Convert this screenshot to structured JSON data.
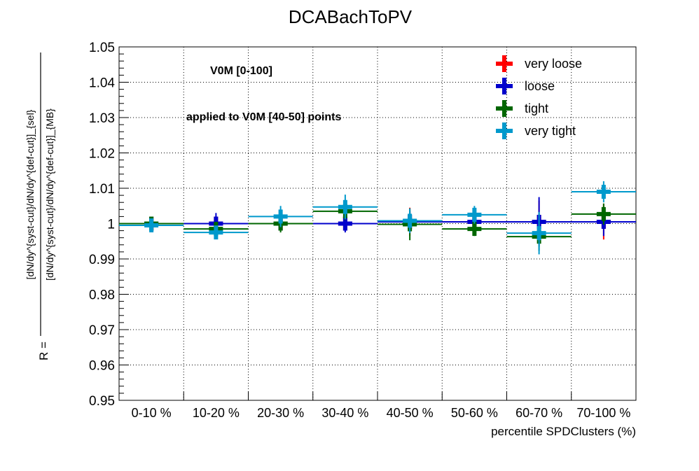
{
  "chart_data": {
    "type": "scatter",
    "title": "DCABachToPV",
    "xlabel": "percentile SPDClusters (%)",
    "ylabel": {
      "prefix": "R = ",
      "numerator": "[dN/dy^{syst-cut}/dN/dy^{def-cut}]_{sel}",
      "denominator": "[dN/dy^{syst-cut}/dN/dy^{def-cut}]_{MB}"
    },
    "ylim": [
      0.95,
      1.05
    ],
    "yticks": [
      "0.95",
      "0.96",
      "0.97",
      "0.98",
      "0.99",
      "1",
      "1.01",
      "1.02",
      "1.03",
      "1.04",
      "1.05"
    ],
    "categories": [
      "0-10 %",
      "10-20 %",
      "20-30 %",
      "30-40 %",
      "40-50 %",
      "50-60 %",
      "60-70 %",
      "70-100 %"
    ],
    "grid": true,
    "legend_position": "top-right",
    "annotations": [
      "V0M [0-100]",
      "applied to V0M [40-50] points"
    ],
    "series": [
      {
        "name": "very loose",
        "color": "#ff0000",
        "values": [
          1.0,
          1.0,
          1.0,
          1.0,
          1.0005,
          1.0005,
          1.0005,
          1.0005
        ],
        "errors": [
          0.001,
          0.002,
          0.001,
          0.002,
          0.004,
          0.001,
          0.006,
          0.005
        ]
      },
      {
        "name": "loose",
        "color": "#0000cc",
        "values": [
          1.0,
          1.0,
          1.0,
          1.0,
          1.0005,
          1.0005,
          1.0005,
          1.0005
        ],
        "errors": [
          0.001,
          0.003,
          0.001,
          0.0025,
          0.003,
          0.001,
          0.007,
          0.004
        ]
      },
      {
        "name": "tight",
        "color": "#006600",
        "values": [
          1.0,
          0.9985,
          1.0,
          1.0035,
          0.9998,
          0.9985,
          0.9963,
          1.0027
        ],
        "errors": [
          0.0015,
          0.002,
          0.0025,
          0.0025,
          0.0045,
          0.002,
          0.004,
          0.003
        ]
      },
      {
        "name": "very tight",
        "color": "#0099cc",
        "values": [
          0.9995,
          0.9975,
          1.002,
          1.0047,
          1.0008,
          1.0025,
          0.9973,
          1.009
        ],
        "errors": [
          0.001,
          0.0015,
          0.003,
          0.0035,
          0.0035,
          0.0025,
          0.006,
          0.003
        ]
      }
    ]
  }
}
